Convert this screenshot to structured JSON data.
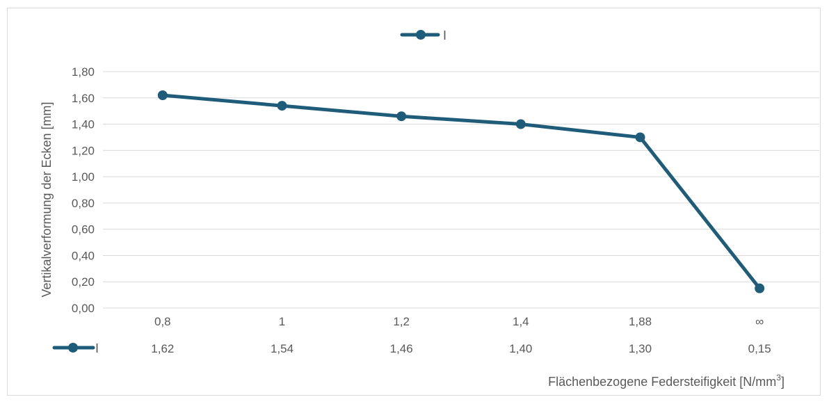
{
  "chart_data": {
    "type": "line",
    "categories": [
      "0,8",
      "1",
      "1,2",
      "1,4",
      "1,88",
      "∞"
    ],
    "series": [
      {
        "name": "I",
        "values": [
          1.62,
          1.54,
          1.46,
          1.4,
          1.3,
          0.15
        ]
      }
    ],
    "data_table_values": [
      "1,62",
      "1,54",
      "1,46",
      "1,40",
      "1,30",
      "0,15"
    ],
    "y_ticks": [
      "0,00",
      "0,20",
      "0,40",
      "0,60",
      "0,80",
      "1,00",
      "1,20",
      "1,40",
      "1,60",
      "1,80"
    ],
    "ylim": [
      0,
      1.8
    ],
    "ylabel": "Vertikalverformung der Ecken [mm]",
    "xlabel_main": "Flächenbezogene Federsteifigkeit [N/mm",
    "xlabel_sup": "3",
    "xlabel_end": "]",
    "legend_position": "top",
    "grid": true,
    "series_color": "#1f5c7a",
    "grid_color": "#d9d9d9",
    "text_color": "#595959"
  }
}
